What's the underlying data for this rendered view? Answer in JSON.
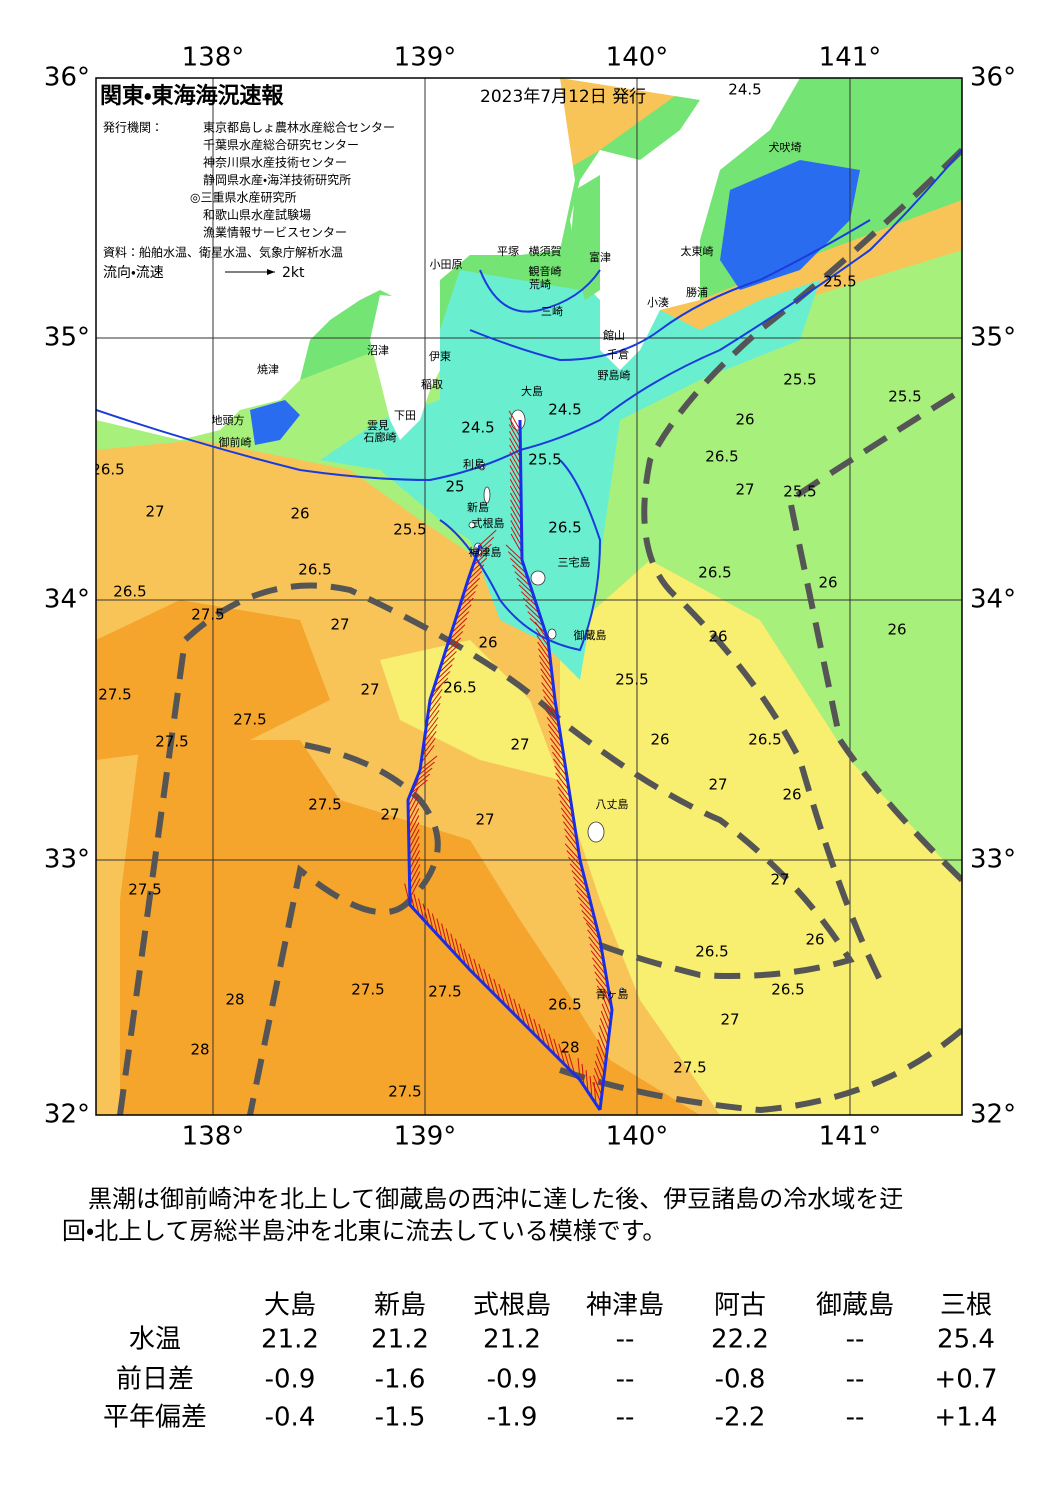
{
  "map": {
    "title": "関東・東海海況速報",
    "date": "2023年7月12日 発行",
    "issuer_heading": "発行機関：",
    "issuers": [
      "東京都島しょ農林水産総合センター",
      "千葉県水産総合研究センター",
      "神奈川県水産技術センター",
      "静岡県水産・海洋技術研究所",
      "◎三重県水産研究所",
      "和歌山県水産試験場",
      "漁業情報サービスセンター"
    ],
    "sources": "資料：船舶水温、衛星水温、気象庁解析水温",
    "legend_label": "流向・流速",
    "legend_speed": "2kt",
    "lon_labels": [
      "138°",
      "139°",
      "140°",
      "141°"
    ],
    "lat_labels": [
      "36°",
      "35°",
      "34°",
      "33°",
      "32°"
    ],
    "place_names": [
      "大島",
      "利島",
      "新島",
      "式根島",
      "神津島",
      "三宅島",
      "御蔵島",
      "八丈島",
      "青ヶ島",
      "小田原",
      "平塚",
      "横須賀",
      "観音崎",
      "荒崎",
      "三崎",
      "富津",
      "館山",
      "千倉",
      "野島崎",
      "小湊",
      "勝浦",
      "太東崎",
      "犬吠埼",
      "沼津",
      "伊東",
      "稲取",
      "下田",
      "雲見",
      "石廊崎",
      "御前崎",
      "地頭方",
      "焼津"
    ],
    "contour_labels": [
      24.5,
      25.5,
      25.5,
      25.5,
      25.5,
      24.5,
      24.5,
      25,
      25.5,
      26,
      25.5,
      26.5,
      26.5,
      27,
      26,
      26.5,
      27,
      26.5,
      26,
      26,
      26,
      25.5,
      26,
      26.5,
      27,
      26,
      26.5,
      27,
      27.5,
      27.5,
      27.5,
      27.5,
      27.5,
      27.5,
      27.5,
      27.5,
      26.5,
      27,
      27.5,
      27.5,
      28,
      28,
      28,
      26.5,
      27,
      26,
      26.5,
      26.5,
      26,
      26.5,
      27,
      27,
      27,
      27
    ]
  },
  "summary": [
    "黒潮は御前崎沖を北上して御蔵島の西沖に達した後、伊豆諸島の冷水域を迂",
    "回・北上して房総半島沖を北東に流去している模様です。"
  ],
  "table": {
    "columns": [
      "大島",
      "新島",
      "式根島",
      "神津島",
      "阿古",
      "御蔵島",
      "三根"
    ],
    "rows": [
      {
        "label": "水温",
        "values": [
          "21.2",
          "21.2",
          "21.2",
          "--",
          "22.2",
          "--",
          "25.4"
        ]
      },
      {
        "label": "前日差",
        "values": [
          "-0.9",
          "-1.6",
          "-0.9",
          "--",
          "-0.8",
          "--",
          "+0.7"
        ]
      },
      {
        "label": "平年偏差",
        "values": [
          "-0.4",
          "-1.5",
          "-1.9",
          "--",
          "-2.2",
          "--",
          "+1.4"
        ]
      }
    ]
  }
}
